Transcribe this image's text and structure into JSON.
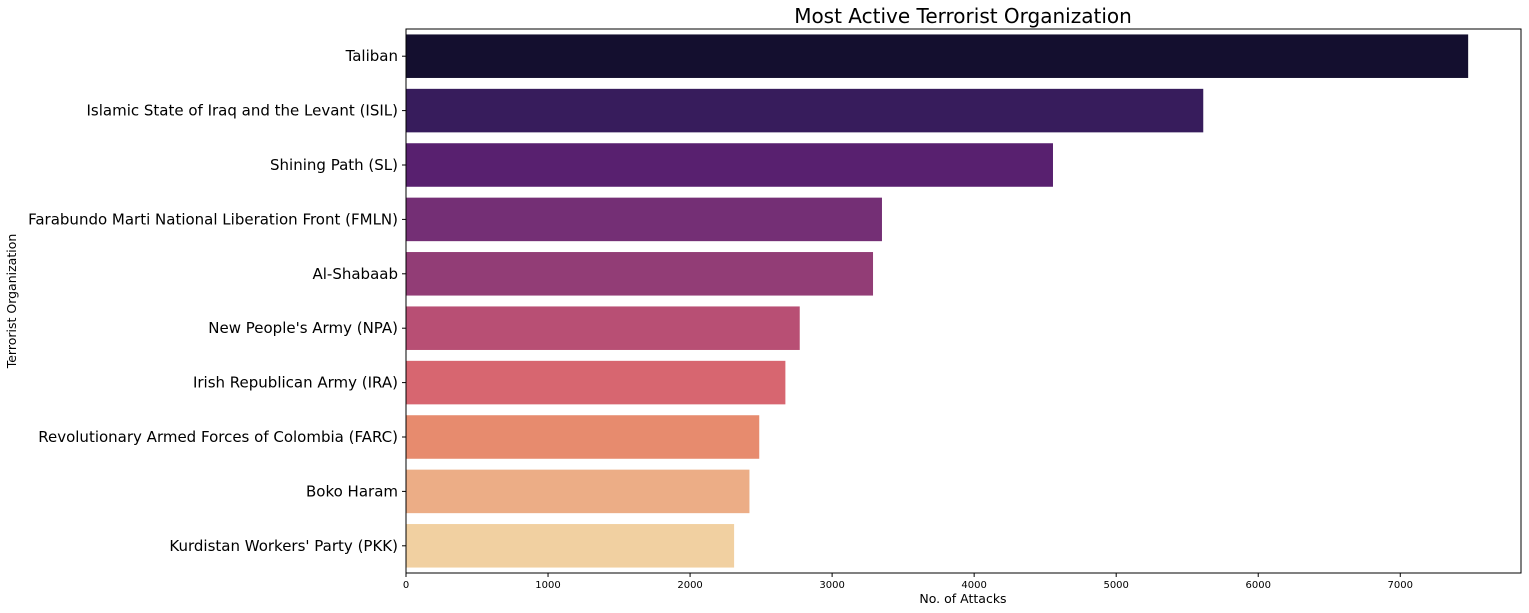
{
  "chart_data": {
    "type": "bar",
    "orientation": "horizontal",
    "title": "Most Active Terrorist Organization",
    "xlabel": "No. of Attacks",
    "ylabel": "Terrorist Organization",
    "xlim": [
      0,
      7850
    ],
    "xticks": [
      0,
      1000,
      2000,
      3000,
      4000,
      5000,
      6000,
      7000
    ],
    "grid": false,
    "categories": [
      "Taliban",
      "Islamic State of Iraq and the Levant (ISIL)",
      "Shining Path (SL)",
      "Farabundo Marti National Liberation Front (FMLN)",
      "Al-Shabaab",
      "New People's Army (NPA)",
      "Irish Republican Army (IRA)",
      "Revolutionary Armed Forces of Colombia (FARC)",
      "Boko Haram",
      "Kurdistan Workers' Party (PKK)"
    ],
    "values": [
      7478,
      5613,
      4555,
      3351,
      3288,
      2772,
      2671,
      2487,
      2418,
      2310
    ],
    "colors": [
      "#140f2f",
      "#371c5c",
      "#58206f",
      "#742f75",
      "#923d76",
      "#b84f74",
      "#d76670",
      "#e78b6e",
      "#ecad86",
      "#f1d0a1"
    ]
  }
}
